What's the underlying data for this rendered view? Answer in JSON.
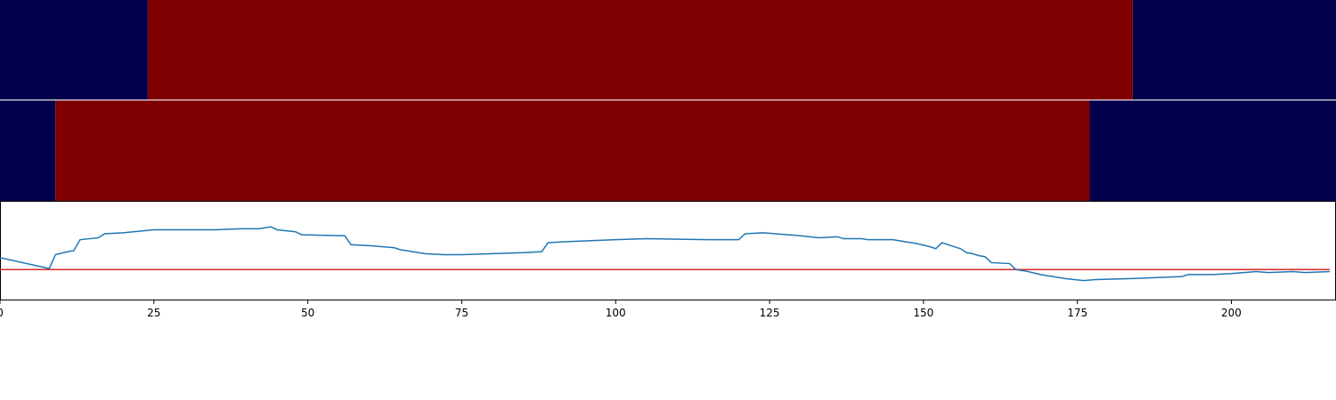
{
  "chart_data": [
    {
      "type": "segments",
      "segments": [
        {
          "start": 0,
          "end": 24,
          "color": "#00004c"
        },
        {
          "start": 24,
          "end": 184,
          "color": "#7f0000"
        },
        {
          "start": 184,
          "end": 217,
          "color": "#00004c"
        }
      ],
      "xlim": [
        0,
        217
      ]
    },
    {
      "type": "segments",
      "segments": [
        {
          "start": 0,
          "end": 9,
          "color": "#00004c"
        },
        {
          "start": 9,
          "end": 177,
          "color": "#7f0000"
        },
        {
          "start": 177,
          "end": 217,
          "color": "#00004c"
        }
      ],
      "xlim": [
        0,
        217
      ]
    },
    {
      "type": "line",
      "x": [
        0,
        8,
        9,
        11,
        12,
        13,
        16,
        17,
        20,
        25,
        28,
        29,
        35,
        39,
        42,
        44,
        45,
        48,
        49,
        56,
        57,
        60,
        64,
        65,
        68,
        69,
        72,
        75,
        85,
        88,
        89,
        92,
        100,
        105,
        115,
        120,
        121,
        124,
        128,
        130,
        133,
        136,
        137,
        140,
        141,
        145,
        149,
        151,
        152,
        153,
        154,
        156,
        157,
        158,
        159,
        160,
        161,
        164,
        165,
        167,
        169,
        172,
        173,
        176,
        178,
        184,
        192,
        193,
        197,
        200,
        204,
        206,
        210,
        212,
        216
      ],
      "series": [
        {
          "color": "#1f77b4",
          "values": [
            43,
            32,
            46,
            49,
            50,
            61,
            63,
            67,
            68,
            71,
            71,
            71,
            71,
            72,
            72,
            74,
            71,
            69,
            66,
            65,
            56,
            55,
            53,
            51,
            48,
            47,
            46,
            46,
            48,
            49,
            58,
            59,
            61,
            62,
            61,
            61,
            67,
            68,
            66,
            65,
            63,
            64,
            62,
            62,
            61,
            61,
            57,
            54,
            52,
            58,
            56,
            52,
            48,
            47,
            45,
            44,
            38,
            37,
            31,
            29,
            26,
            23,
            22,
            20,
            21,
            22,
            24,
            26,
            26,
            27,
            29,
            28,
            29,
            28,
            29
          ]
        }
      ],
      "threshold": {
        "value": 31,
        "color": "#d62728"
      },
      "xlim": [
        0,
        217
      ],
      "ylim": [
        0,
        100
      ],
      "xticks": [
        0,
        25,
        50,
        75,
        100,
        125,
        150,
        175,
        200
      ]
    }
  ]
}
